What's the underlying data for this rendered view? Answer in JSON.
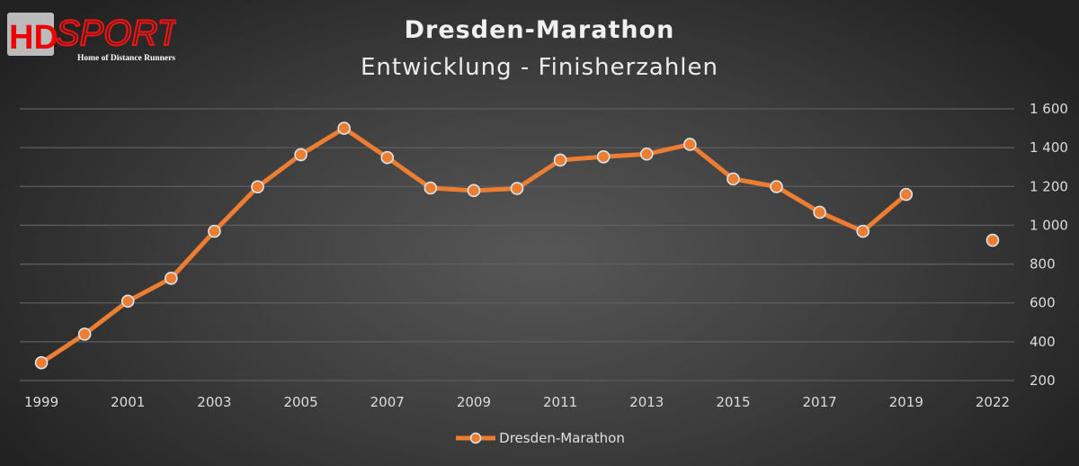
{
  "logo": {
    "text_main": "HD",
    "text_sports": "SPORTS",
    "tagline": "Home of Distance Runners"
  },
  "chart_data": {
    "type": "line",
    "title": "Dresden-Marathon",
    "subtitle": "Entwicklung - Finisherzahlen",
    "categories": [
      "1999",
      "2000",
      "2001",
      "2002",
      "2003",
      "2004",
      "2005",
      "2006",
      "2007",
      "2008",
      "2009",
      "2010",
      "2011",
      "2012",
      "2013",
      "2014",
      "2015",
      "2016",
      "2017",
      "2018",
      "2019",
      "",
      "2022"
    ],
    "x_tick_labels": [
      "1999",
      "2001",
      "2003",
      "2005",
      "2007",
      "2009",
      "2011",
      "2013",
      "2015",
      "2017",
      "2019",
      "2022"
    ],
    "series": [
      {
        "name": "Dresden-Marathon",
        "values": [
          292,
          439,
          609,
          727,
          969,
          1198,
          1364,
          1500,
          1349,
          1192,
          1179,
          1190,
          1336,
          1353,
          1367,
          1417,
          1239,
          1199,
          1067,
          969,
          1159,
          null,
          923
        ]
      }
    ],
    "ylim": [
      200,
      1600
    ],
    "y_ticks": [
      200,
      400,
      600,
      800,
      1000,
      1200,
      1400,
      1600
    ],
    "y_tick_labels": [
      "200",
      "400",
      "600",
      "800",
      "1 000",
      "1 200",
      "1 400",
      "1 600"
    ],
    "y_axis_position": "right",
    "grid": true,
    "legend": "bottom",
    "colors": {
      "series": "#ED7D31",
      "marker_border": "#d8e6f0",
      "grid": "#5e5e5e"
    }
  }
}
